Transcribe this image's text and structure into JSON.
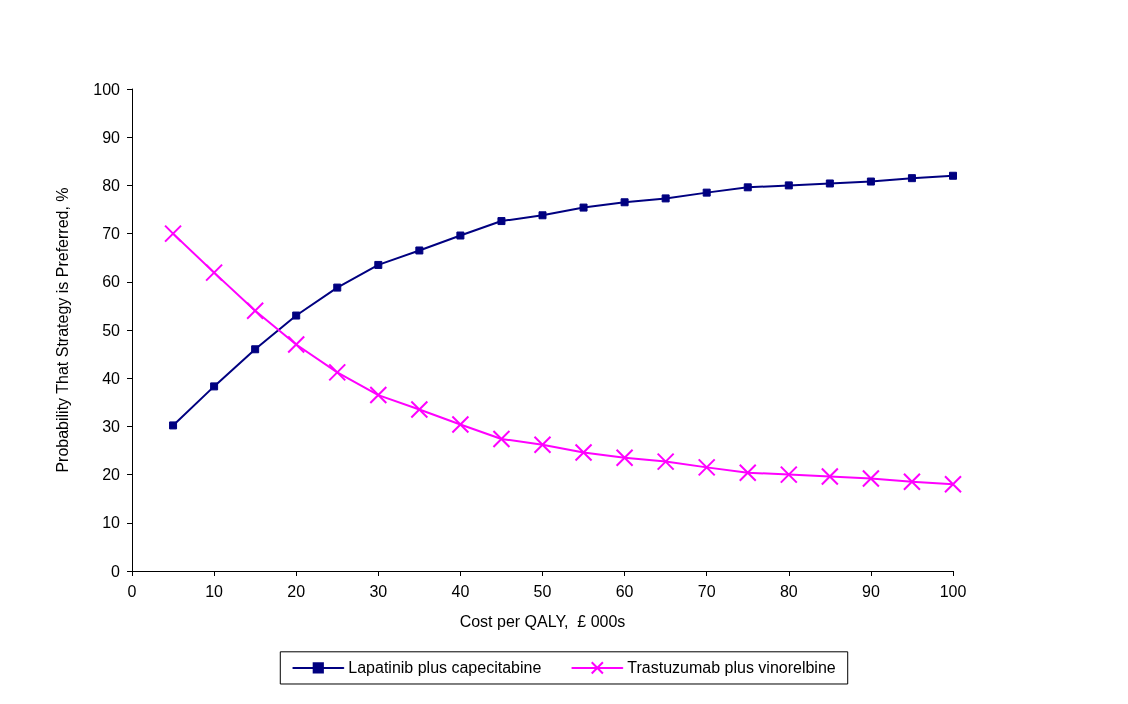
{
  "chart_data": {
    "type": "line",
    "xlabel": "Cost per QALY,  £ 000s",
    "ylabel": "Probability That Strategy is Preferred, %",
    "x": [
      5,
      10,
      15,
      20,
      25,
      30,
      35,
      40,
      45,
      50,
      55,
      60,
      65,
      70,
      75,
      80,
      85,
      90,
      95,
      100
    ],
    "xlim": [
      0,
      100
    ],
    "xticks": [
      0,
      10,
      20,
      30,
      40,
      50,
      60,
      70,
      80,
      90,
      100
    ],
    "ylim": [
      0,
      100
    ],
    "yticks": [
      0,
      10,
      20,
      30,
      40,
      50,
      60,
      70,
      80,
      90,
      100
    ],
    "grid": false,
    "legend": "bottom",
    "line_style": "solid",
    "series": [
      {
        "name": "Lapatinib plus capecitabine",
        "color": "#000080",
        "marker": "square",
        "values": [
          30.2,
          38.3,
          46,
          53,
          58.8,
          63.5,
          66.5,
          69.6,
          72.6,
          73.8,
          75.4,
          76.5,
          77.3,
          78.5,
          79.6,
          80,
          80.4,
          80.8,
          81.5,
          82
        ]
      },
      {
        "name": "Trastuzumab plus vinorelbine",
        "color": "#ff00ff",
        "marker": "cross",
        "values": [
          70,
          61.9,
          54,
          47,
          41.2,
          36.5,
          33.5,
          30.4,
          27.4,
          26.2,
          24.6,
          23.5,
          22.7,
          21.5,
          20.4,
          20,
          19.6,
          19.2,
          18.5,
          18
        ]
      }
    ]
  }
}
